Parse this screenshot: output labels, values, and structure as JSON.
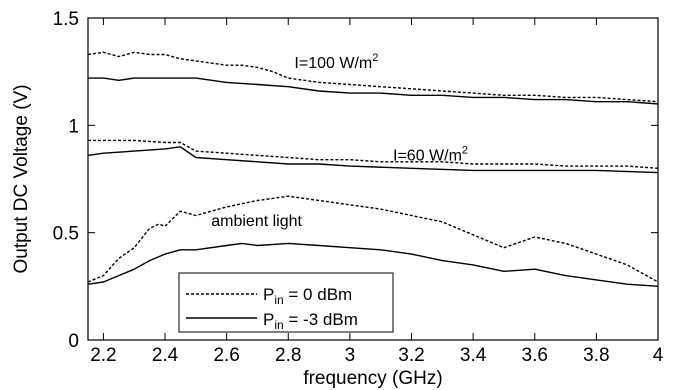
{
  "chart_data": {
    "type": "line",
    "xlabel": "frequency (GHz)",
    "ylabel": "Output DC Voltage (V)",
    "xlim": [
      2.15,
      4.0
    ],
    "ylim": [
      0,
      1.5
    ],
    "x_ticks": [
      "2.2",
      "2.4",
      "2.6",
      "2.8",
      "3",
      "3.2",
      "3.4",
      "3.6",
      "3.8",
      "4"
    ],
    "x_tick_values": [
      2.2,
      2.4,
      2.6,
      2.8,
      3.0,
      3.2,
      3.4,
      3.6,
      3.8,
      4.0
    ],
    "y_ticks": [
      "0",
      "0.5",
      "1",
      "1.5"
    ],
    "y_tick_values": [
      0,
      0.5,
      1.0,
      1.5
    ],
    "grid": false,
    "legend_position": "bottom-left",
    "legend": [
      {
        "main": "P",
        "sub": "in",
        "rest": " = 0 dBm",
        "style": "dotted"
      },
      {
        "main": "P",
        "sub": "in",
        "rest": " = -3 dBm",
        "style": "solid"
      }
    ],
    "annotations": [
      {
        "main": "I=100 W/m",
        "sup": "2",
        "x": 2.82,
        "y": 1.29
      },
      {
        "main": "I=60 W/m",
        "sup": "2",
        "x": 3.14,
        "y": 0.86
      },
      {
        "main": "ambient light",
        "sup": "",
        "x": 2.55,
        "y": 0.555
      }
    ],
    "series": [
      {
        "group": "I=100 W/m2",
        "style": "dotted",
        "x": [
          2.15,
          2.2,
          2.25,
          2.3,
          2.35,
          2.4,
          2.45,
          2.5,
          2.55,
          2.6,
          2.65,
          2.7,
          2.75,
          2.8,
          2.9,
          3.0,
          3.1,
          3.2,
          3.3,
          3.4,
          3.5,
          3.6,
          3.7,
          3.8,
          3.9,
          4.0
        ],
        "y": [
          1.33,
          1.34,
          1.32,
          1.34,
          1.33,
          1.33,
          1.31,
          1.3,
          1.29,
          1.28,
          1.28,
          1.27,
          1.25,
          1.22,
          1.2,
          1.19,
          1.18,
          1.17,
          1.16,
          1.15,
          1.14,
          1.14,
          1.13,
          1.13,
          1.12,
          1.11
        ]
      },
      {
        "group": "I=100 W/m2",
        "style": "solid",
        "x": [
          2.15,
          2.2,
          2.25,
          2.3,
          2.4,
          2.5,
          2.6,
          2.7,
          2.8,
          2.9,
          3.0,
          3.1,
          3.2,
          3.3,
          3.4,
          3.5,
          3.6,
          3.7,
          3.8,
          3.9,
          4.0
        ],
        "y": [
          1.22,
          1.22,
          1.21,
          1.22,
          1.22,
          1.22,
          1.2,
          1.19,
          1.18,
          1.16,
          1.15,
          1.15,
          1.14,
          1.14,
          1.13,
          1.13,
          1.12,
          1.12,
          1.11,
          1.11,
          1.1
        ]
      },
      {
        "group": "I=60 W/m2",
        "style": "dotted",
        "x": [
          2.15,
          2.2,
          2.3,
          2.4,
          2.45,
          2.5,
          2.6,
          2.7,
          2.8,
          2.9,
          3.0,
          3.1,
          3.2,
          3.3,
          3.4,
          3.5,
          3.6,
          3.7,
          3.8,
          3.9,
          4.0
        ],
        "y": [
          0.93,
          0.93,
          0.93,
          0.92,
          0.92,
          0.88,
          0.87,
          0.86,
          0.85,
          0.84,
          0.84,
          0.83,
          0.83,
          0.83,
          0.82,
          0.82,
          0.82,
          0.81,
          0.81,
          0.81,
          0.8
        ]
      },
      {
        "group": "I=60 W/m2",
        "style": "solid",
        "x": [
          2.15,
          2.2,
          2.3,
          2.4,
          2.45,
          2.5,
          2.6,
          2.7,
          2.8,
          2.9,
          3.0,
          3.2,
          3.4,
          3.6,
          3.8,
          4.0
        ],
        "y": [
          0.86,
          0.87,
          0.88,
          0.89,
          0.9,
          0.85,
          0.84,
          0.83,
          0.82,
          0.82,
          0.81,
          0.8,
          0.79,
          0.79,
          0.79,
          0.78
        ]
      },
      {
        "group": "ambient light",
        "style": "dotted",
        "x": [
          2.15,
          2.2,
          2.25,
          2.3,
          2.35,
          2.38,
          2.4,
          2.45,
          2.5,
          2.6,
          2.7,
          2.8,
          2.9,
          3.0,
          3.1,
          3.2,
          3.3,
          3.4,
          3.5,
          3.6,
          3.7,
          3.8,
          3.9,
          4.0
        ],
        "y": [
          0.27,
          0.3,
          0.38,
          0.43,
          0.52,
          0.54,
          0.53,
          0.6,
          0.58,
          0.62,
          0.65,
          0.67,
          0.65,
          0.63,
          0.61,
          0.58,
          0.55,
          0.49,
          0.43,
          0.48,
          0.45,
          0.4,
          0.35,
          0.27
        ]
      },
      {
        "group": "ambient light",
        "style": "solid",
        "x": [
          2.15,
          2.2,
          2.25,
          2.3,
          2.35,
          2.4,
          2.45,
          2.5,
          2.6,
          2.65,
          2.7,
          2.8,
          2.9,
          3.0,
          3.1,
          3.2,
          3.3,
          3.4,
          3.5,
          3.6,
          3.7,
          3.8,
          3.9,
          4.0
        ],
        "y": [
          0.26,
          0.27,
          0.3,
          0.33,
          0.37,
          0.4,
          0.42,
          0.42,
          0.44,
          0.45,
          0.44,
          0.45,
          0.44,
          0.43,
          0.42,
          0.4,
          0.37,
          0.35,
          0.32,
          0.33,
          0.3,
          0.28,
          0.26,
          0.25
        ]
      }
    ]
  }
}
